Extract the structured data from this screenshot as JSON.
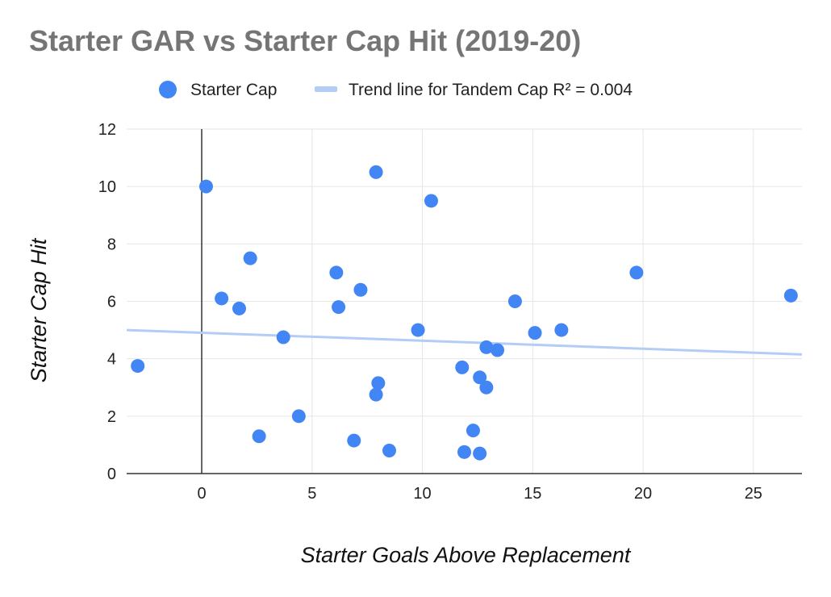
{
  "chart_data": {
    "type": "scatter",
    "title": "Starter GAR vs Starter Cap Hit (2019-20)",
    "xlabel": "Starter Goals Above Replacement",
    "ylabel": "Starter Cap Hit",
    "xlim": [
      -3.4,
      27.2
    ],
    "ylim": [
      0,
      12
    ],
    "x_ticks": [
      0,
      5,
      10,
      15,
      20,
      25
    ],
    "y_ticks": [
      0,
      2,
      4,
      6,
      8,
      10,
      12
    ],
    "grid": true,
    "legend_position": "top",
    "series": [
      {
        "name": "Starter Cap",
        "color": "#4285f4",
        "points": [
          {
            "x": -2.9,
            "y": 3.75
          },
          {
            "x": 0.2,
            "y": 10.0
          },
          {
            "x": 0.9,
            "y": 6.1
          },
          {
            "x": 1.7,
            "y": 5.75
          },
          {
            "x": 2.2,
            "y": 7.5
          },
          {
            "x": 2.6,
            "y": 1.3
          },
          {
            "x": 3.7,
            "y": 4.75
          },
          {
            "x": 4.4,
            "y": 2.0
          },
          {
            "x": 6.1,
            "y": 7.0
          },
          {
            "x": 6.2,
            "y": 5.8
          },
          {
            "x": 6.9,
            "y": 1.15
          },
          {
            "x": 7.2,
            "y": 6.4
          },
          {
            "x": 7.9,
            "y": 10.5
          },
          {
            "x": 7.9,
            "y": 2.75
          },
          {
            "x": 8.0,
            "y": 3.15
          },
          {
            "x": 8.5,
            "y": 0.8
          },
          {
            "x": 9.8,
            "y": 5.0
          },
          {
            "x": 10.4,
            "y": 9.5
          },
          {
            "x": 11.8,
            "y": 3.7
          },
          {
            "x": 11.9,
            "y": 0.75
          },
          {
            "x": 12.3,
            "y": 1.5
          },
          {
            "x": 12.6,
            "y": 3.35
          },
          {
            "x": 12.6,
            "y": 0.7
          },
          {
            "x": 12.9,
            "y": 4.4
          },
          {
            "x": 12.9,
            "y": 3.0
          },
          {
            "x": 13.4,
            "y": 4.3
          },
          {
            "x": 14.2,
            "y": 6.0
          },
          {
            "x": 15.1,
            "y": 4.9
          },
          {
            "x": 16.3,
            "y": 5.0
          },
          {
            "x": 19.7,
            "y": 7.0
          },
          {
            "x": 26.7,
            "y": 6.2
          }
        ]
      }
    ],
    "trendline": {
      "label": "Trend line for Tandem Cap R² = 0.004",
      "color": "#b3cdf7",
      "x": [
        -3.4,
        27.2
      ],
      "y": [
        5.0,
        4.15
      ]
    }
  }
}
